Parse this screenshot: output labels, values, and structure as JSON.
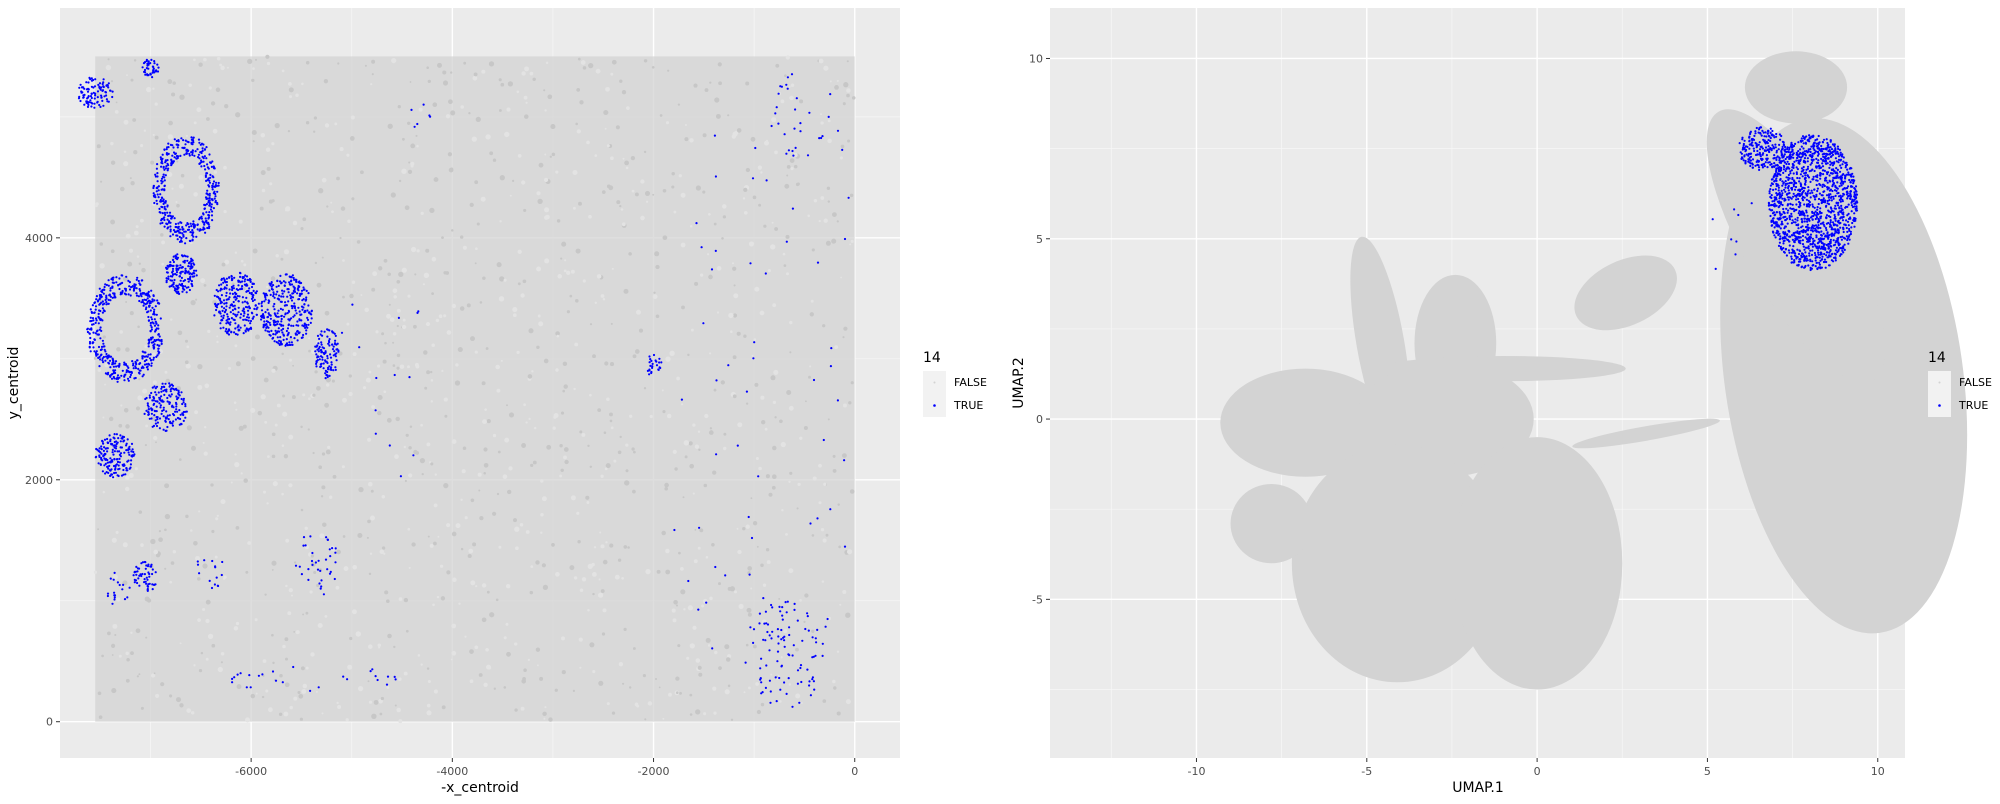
{
  "chart_data": [
    {
      "type": "scatter",
      "panel": "spatial",
      "xlabel": "-x_centroid",
      "ylabel": "y_centroid",
      "xlim": [
        -7900,
        450
      ],
      "ylim": [
        -300,
        5900
      ],
      "xticks": [
        -6000,
        -4000,
        -2000,
        0
      ],
      "yticks": [
        0,
        2000,
        4000
      ],
      "xtick_labels": [
        "-6000",
        "-4000",
        "-2000",
        "0"
      ],
      "ytick_labels": [
        "0",
        "2000",
        "4000"
      ],
      "grid": true,
      "legend": {
        "title": "14",
        "position": "right",
        "entries": [
          {
            "label": "FALSE",
            "color": "#d3d3d3"
          },
          {
            "label": "TRUE",
            "color": "#0000ff"
          }
        ]
      },
      "series": [
        {
          "name": "FALSE",
          "color": "#d3d3d3",
          "regions": [
            {
              "shape": "rect",
              "x": [
                -7550,
                0
              ],
              "y": [
                0,
                5500
              ]
            }
          ]
        },
        {
          "name": "TRUE",
          "color": "#0000ff",
          "clusters": [
            {
              "shape": "ring",
              "cx": -6650,
              "cy": 4400,
              "rx": 330,
              "ry": 450,
              "n": 420
            },
            {
              "shape": "ring",
              "cx": -7250,
              "cy": 3250,
              "rx": 380,
              "ry": 450,
              "n": 460
            },
            {
              "shape": "blob",
              "cx": -6700,
              "cy": 3700,
              "rx": 160,
              "ry": 170,
              "n": 160
            },
            {
              "shape": "blob",
              "cx": -6150,
              "cy": 3450,
              "rx": 230,
              "ry": 270,
              "n": 260
            },
            {
              "shape": "blob",
              "cx": -5650,
              "cy": 3400,
              "rx": 260,
              "ry": 300,
              "n": 320
            },
            {
              "shape": "blob",
              "cx": -5250,
              "cy": 3050,
              "rx": 120,
              "ry": 220,
              "n": 110
            },
            {
              "shape": "blob",
              "cx": -6850,
              "cy": 2600,
              "rx": 220,
              "ry": 200,
              "n": 170
            },
            {
              "shape": "blob",
              "cx": -7350,
              "cy": 2200,
              "rx": 200,
              "ry": 180,
              "n": 170
            },
            {
              "shape": "blob",
              "cx": -7550,
              "cy": 5200,
              "rx": 180,
              "ry": 130,
              "n": 100
            },
            {
              "shape": "blob",
              "cx": -7000,
              "cy": 5400,
              "rx": 80,
              "ry": 80,
              "n": 40
            },
            {
              "shape": "blob",
              "cx": -7050,
              "cy": 1200,
              "rx": 120,
              "ry": 130,
              "n": 55
            },
            {
              "shape": "blob",
              "cx": -7300,
              "cy": 1100,
              "rx": 150,
              "ry": 150,
              "n": 18
            },
            {
              "shape": "blob",
              "cx": -6400,
              "cy": 1250,
              "rx": 150,
              "ry": 150,
              "n": 15
            },
            {
              "shape": "blob",
              "cx": -5350,
              "cy": 1300,
              "rx": 220,
              "ry": 280,
              "n": 35
            },
            {
              "shape": "blob",
              "cx": -5300,
              "cy": 350,
              "rx": 950,
              "ry": 120,
              "n": 26
            },
            {
              "shape": "blob",
              "cx": -2000,
              "cy": 2950,
              "rx": 90,
              "ry": 90,
              "n": 25
            },
            {
              "shape": "blob",
              "cx": -4300,
              "cy": 5000,
              "rx": 150,
              "ry": 120,
              "n": 6
            },
            {
              "shape": "blob",
              "cx": -700,
              "cy": 550,
              "rx": 400,
              "ry": 450,
              "n": 95
            },
            {
              "shape": "blob",
              "cx": -500,
              "cy": 5000,
              "rx": 350,
              "ry": 380,
              "n": 28
            },
            {
              "shape": "scatter",
              "x": [
                -1800,
                -50
              ],
              "y": [
                600,
                5000
              ],
              "n": 55
            },
            {
              "shape": "scatter",
              "x": [
                -5100,
                -4100
              ],
              "y": [
                2000,
                3800
              ],
              "n": 14
            }
          ]
        }
      ]
    },
    {
      "type": "scatter",
      "panel": "umap",
      "xlabel": "UMAP.1",
      "ylabel": "UMAP.2",
      "xlim": [
        -14.3,
        10.8
      ],
      "ylim": [
        -9.4,
        11.4
      ],
      "xticks": [
        -10,
        -5,
        0,
        5,
        10
      ],
      "yticks": [
        -5,
        0,
        5,
        10
      ],
      "xtick_labels": [
        "-10",
        "-5",
        "0",
        "5",
        "10"
      ],
      "ytick_labels": [
        "-5",
        "0",
        "5",
        "10"
      ],
      "grid": true,
      "legend": {
        "title": "14",
        "position": "right",
        "entries": [
          {
            "label": "FALSE",
            "color": "#d3d3d3"
          },
          {
            "label": "TRUE",
            "color": "#0000ff"
          }
        ]
      },
      "series": [
        {
          "name": "FALSE",
          "color": "#d3d3d3",
          "regions": [
            {
              "shape": "ellipse",
              "cx": 9.0,
              "cy": 1.2,
              "rx": 3.5,
              "ry": 7.2,
              "rot": -8
            },
            {
              "shape": "ellipse",
              "cx": 7.6,
              "cy": 4.8,
              "rx": 1.5,
              "ry": 4.3,
              "rot": -30
            },
            {
              "shape": "ellipse",
              "cx": 7.6,
              "cy": 9.2,
              "rx": 1.5,
              "ry": 1.0,
              "rot": 0
            },
            {
              "shape": "ellipse",
              "cx": 2.6,
              "cy": 3.5,
              "rx": 1.6,
              "ry": 0.9,
              "rot": -25
            },
            {
              "shape": "ellipse",
              "cx": 3.2,
              "cy": -0.4,
              "rx": 2.2,
              "ry": 0.2,
              "rot": -10
            },
            {
              "shape": "ellipse",
              "cx": -6.8,
              "cy": -0.1,
              "rx": 2.5,
              "ry": 1.5,
              "rot": 0
            },
            {
              "shape": "ellipse",
              "cx": -4.6,
              "cy": 2.1,
              "rx": 0.7,
              "ry": 3.0,
              "rot": -10
            },
            {
              "shape": "ellipse",
              "cx": -2.4,
              "cy": 2.1,
              "rx": 1.2,
              "ry": 1.9,
              "rot": 0
            },
            {
              "shape": "ellipse",
              "cx": -2.7,
              "cy": 0.0,
              "rx": 2.6,
              "ry": 1.6,
              "rot": 0
            },
            {
              "shape": "ellipse",
              "cx": -4.1,
              "cy": -4.0,
              "rx": 3.1,
              "ry": 3.3,
              "rot": 0
            },
            {
              "shape": "ellipse",
              "cx": 0.0,
              "cy": -4.0,
              "rx": 2.5,
              "ry": 3.5,
              "rot": 0
            },
            {
              "shape": "ellipse",
              "cx": -7.8,
              "cy": -2.9,
              "rx": 1.2,
              "ry": 1.1,
              "rot": 0
            },
            {
              "shape": "ellipse",
              "cx": -1.0,
              "cy": 1.4,
              "rx": 3.6,
              "ry": 0.35,
              "rot": 0
            }
          ]
        },
        {
          "name": "TRUE",
          "color": "#0000ff",
          "clusters": [
            {
              "shape": "blob",
              "cx": 8.1,
              "cy": 6.0,
              "rx": 1.3,
              "ry": 1.9,
              "n": 1500
            },
            {
              "shape": "blob",
              "cx": 6.6,
              "cy": 7.5,
              "rx": 0.7,
              "ry": 0.6,
              "n": 220
            },
            {
              "shape": "scatter",
              "x": [
                5.0,
                6.3
              ],
              "y": [
                4.0,
                6.5
              ],
              "n": 8
            }
          ]
        }
      ]
    }
  ]
}
